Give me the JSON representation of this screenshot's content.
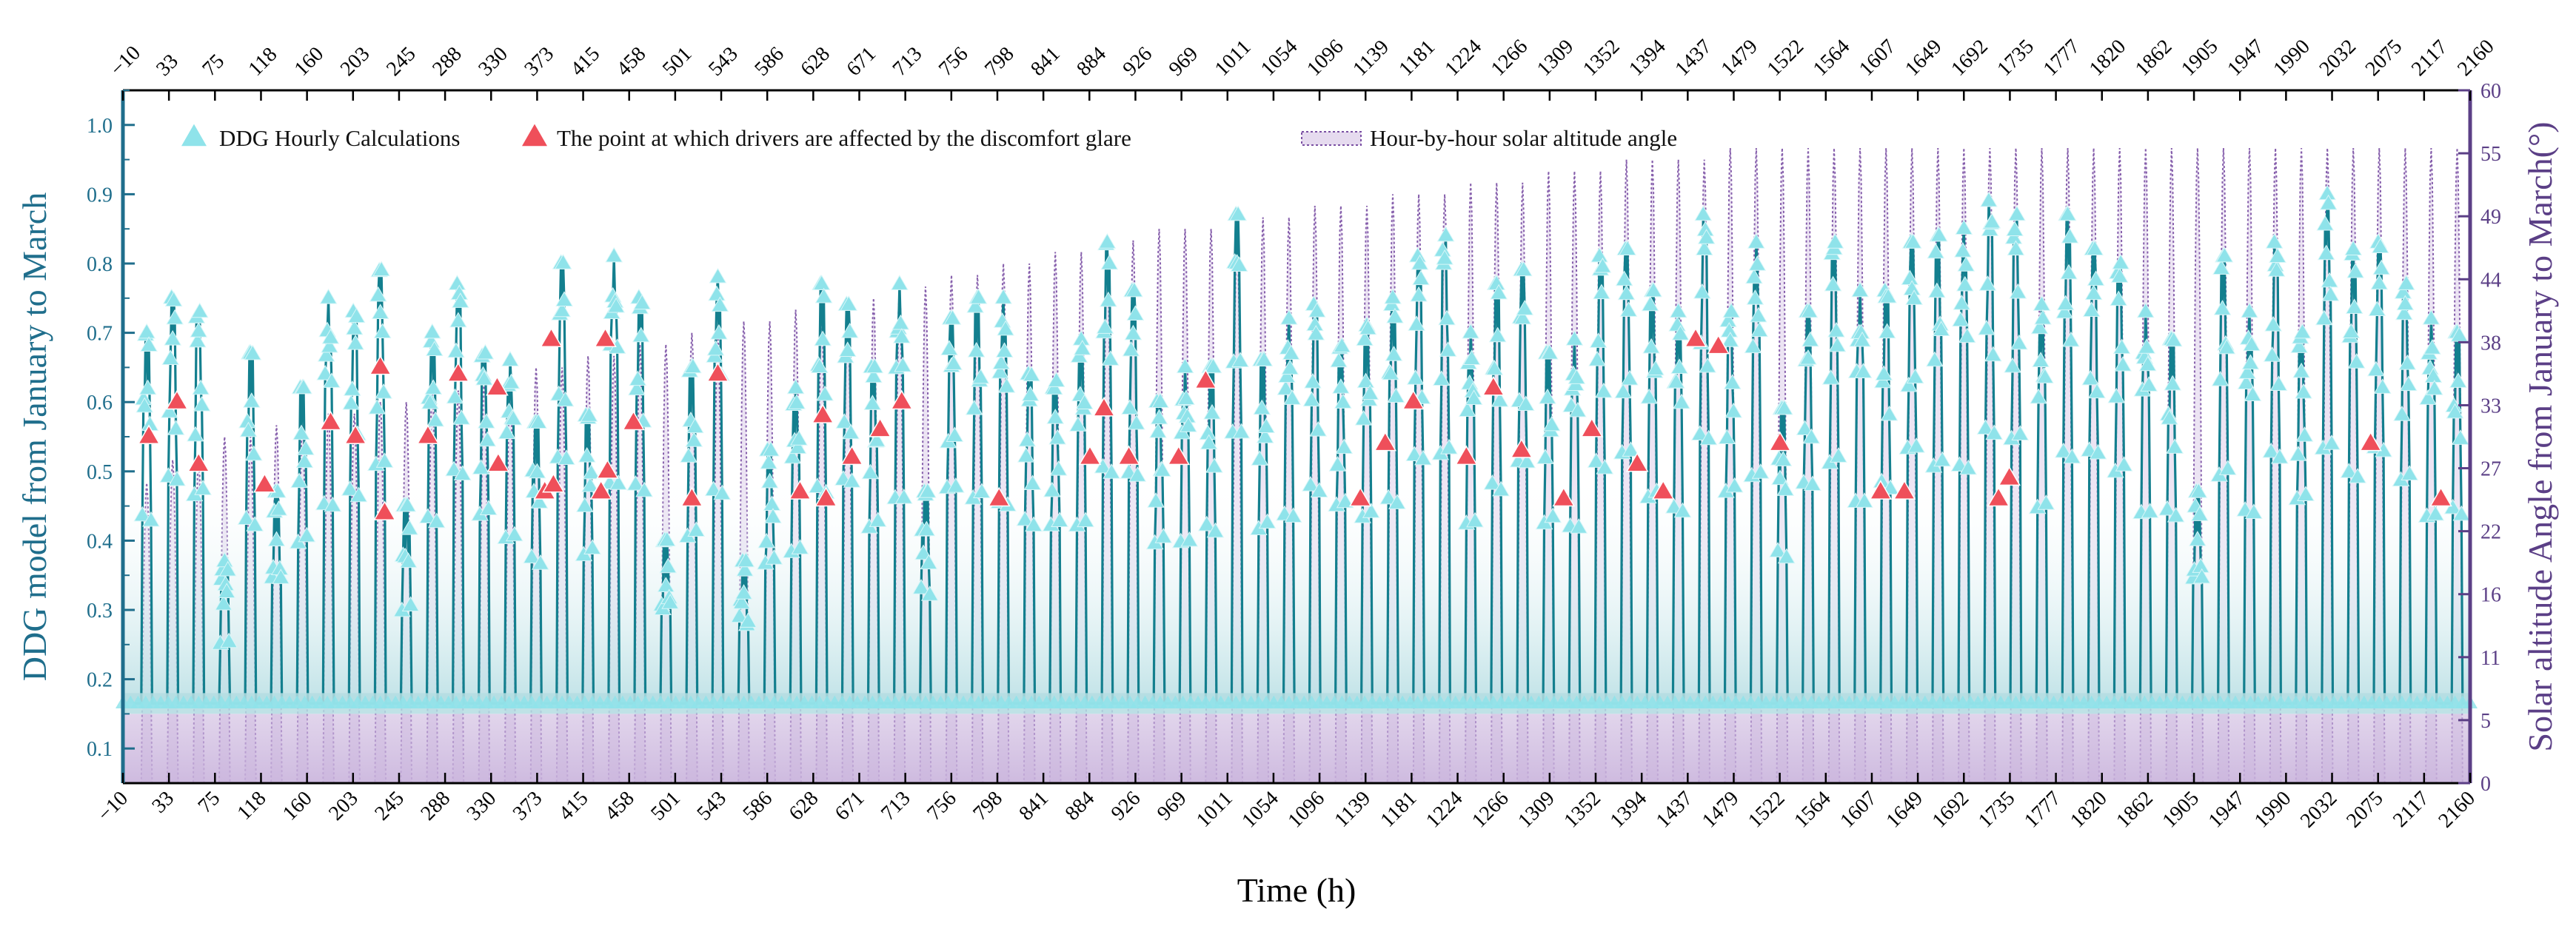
{
  "chart_data": {
    "type": "line",
    "title": "",
    "xlabel": "Time (h)",
    "ylabel": "DDG model from January to March",
    "y2label": "Solar altitude Angle from January to March(°)",
    "xlim": [
      -10,
      2160
    ],
    "ylim": [
      0.05,
      1.05
    ],
    "y2lim": [
      0,
      60
    ],
    "x_ticks": [
      "−10",
      "33",
      "75",
      "118",
      "160",
      "203",
      "245",
      "288",
      "330",
      "373",
      "415",
      "458",
      "501",
      "543",
      "586",
      "628",
      "671",
      "713",
      "756",
      "798",
      "841",
      "884",
      "926",
      "969",
      "1011",
      "1054",
      "1096",
      "1139",
      "1181",
      "1224",
      "1266",
      "1309",
      "1352",
      "1394",
      "1437",
      "1479",
      "1522",
      "1564",
      "1607",
      "1649",
      "1692",
      "1735",
      "1777",
      "1820",
      "1862",
      "1905",
      "1947",
      "1990",
      "2032",
      "2075",
      "2117",
      "2160"
    ],
    "y_ticks": [
      "0.1",
      "0.2",
      "0.3",
      "0.4",
      "0.5",
      "0.6",
      "0.7",
      "0.8",
      "0.9",
      "1.0"
    ],
    "y2_ticks": [
      "0",
      "5",
      "11",
      "16",
      "22",
      "27",
      "33",
      "38",
      "44",
      "49",
      "55",
      "60"
    ],
    "legend": [
      "DDG Hourly Calculations",
      "The point at which drivers are affected by the discomfort glare",
      "Hour-by-hour solar altitude angle"
    ],
    "legend_position": "top-left",
    "grid": false,
    "colors": {
      "ddg_line": "#137f8e",
      "ddg_marker": "#8fe3ea",
      "glare_marker": "#ef4f5a",
      "solar": "#7a4fa3",
      "solar_fill": "#c9b3dc",
      "left_axis": "#1f6e8c",
      "right_axis": "#5b3f86"
    },
    "series": [
      {
        "name": "DDG Hourly Calculations",
        "baseline": 0.165,
        "start_hour": 7,
        "end_hour": 17,
        "daily_peaks": [
          0.7,
          0.75,
          0.73,
          0.37,
          0.67,
          0.47,
          0.62,
          0.75,
          0.73,
          0.79,
          0.45,
          0.7,
          0.77,
          0.67,
          0.66,
          0.57,
          0.8,
          0.58,
          0.81,
          0.75,
          0.4,
          0.65,
          0.78,
          0.37,
          0.53,
          0.62,
          0.77,
          0.74,
          0.65,
          0.77,
          0.47,
          0.72,
          0.75,
          0.75,
          0.64,
          0.63,
          0.69,
          0.83,
          0.76,
          0.6,
          0.65,
          0.65,
          0.87,
          0.66,
          0.72,
          0.74,
          0.68,
          0.71,
          0.75,
          0.81,
          0.84,
          0.7,
          0.77,
          0.79,
          0.67,
          0.69,
          0.81,
          0.82,
          0.76,
          0.73,
          0.87,
          0.73,
          0.83,
          0.59,
          0.73,
          0.83,
          0.76,
          0.76,
          0.83,
          0.84,
          0.85,
          0.89,
          0.87,
          0.74,
          0.87,
          0.82,
          0.8,
          0.73,
          0.69,
          0.47,
          0.81,
          0.73,
          0.83,
          0.7,
          0.9,
          0.82,
          0.83,
          0.77,
          0.72,
          0.7
        ]
      },
      {
        "name": "The point at which drivers are affected by the discomfort glare",
        "points": [
          {
            "x": 14,
            "y": 0.55
          },
          {
            "x": 40,
            "y": 0.6
          },
          {
            "x": 60,
            "y": 0.51
          },
          {
            "x": 121,
            "y": 0.48
          },
          {
            "x": 182,
            "y": 0.57
          },
          {
            "x": 205,
            "y": 0.55
          },
          {
            "x": 228,
            "y": 0.65
          },
          {
            "x": 232,
            "y": 0.44
          },
          {
            "x": 272,
            "y": 0.55
          },
          {
            "x": 300,
            "y": 0.64
          },
          {
            "x": 336,
            "y": 0.62
          },
          {
            "x": 337,
            "y": 0.51
          },
          {
            "x": 380,
            "y": 0.47
          },
          {
            "x": 386,
            "y": 0.69
          },
          {
            "x": 388,
            "y": 0.48
          },
          {
            "x": 432,
            "y": 0.47
          },
          {
            "x": 436,
            "y": 0.69
          },
          {
            "x": 438,
            "y": 0.5
          },
          {
            "x": 462,
            "y": 0.57
          },
          {
            "x": 516,
            "y": 0.46
          },
          {
            "x": 540,
            "y": 0.64
          },
          {
            "x": 616,
            "y": 0.47
          },
          {
            "x": 637,
            "y": 0.58
          },
          {
            "x": 640,
            "y": 0.46
          },
          {
            "x": 664,
            "y": 0.52
          },
          {
            "x": 690,
            "y": 0.56
          },
          {
            "x": 710,
            "y": 0.6
          },
          {
            "x": 800,
            "y": 0.46
          },
          {
            "x": 884,
            "y": 0.52
          },
          {
            "x": 897,
            "y": 0.59
          },
          {
            "x": 920,
            "y": 0.52
          },
          {
            "x": 966,
            "y": 0.52
          },
          {
            "x": 991,
            "y": 0.63
          },
          {
            "x": 1134,
            "y": 0.46
          },
          {
            "x": 1157,
            "y": 0.54
          },
          {
            "x": 1183,
            "y": 0.6
          },
          {
            "x": 1232,
            "y": 0.52
          },
          {
            "x": 1257,
            "y": 0.62
          },
          {
            "x": 1283,
            "y": 0.53
          },
          {
            "x": 1322,
            "y": 0.46
          },
          {
            "x": 1348,
            "y": 0.56
          },
          {
            "x": 1390,
            "y": 0.51
          },
          {
            "x": 1414,
            "y": 0.47
          },
          {
            "x": 1444,
            "y": 0.69
          },
          {
            "x": 1465,
            "y": 0.68
          },
          {
            "x": 1522,
            "y": 0.54
          },
          {
            "x": 1615,
            "y": 0.47
          },
          {
            "x": 1637,
            "y": 0.47
          },
          {
            "x": 1724,
            "y": 0.46
          },
          {
            "x": 1734,
            "y": 0.49
          },
          {
            "x": 2068,
            "y": 0.54
          },
          {
            "x": 2133,
            "y": 0.46
          }
        ]
      },
      {
        "name": "Hour-by-hour solar altitude angle",
        "axis": "right",
        "noon_hour": 12,
        "day_length_hours": 10,
        "daily_peaks": [
          26,
          28,
          28,
          30,
          30,
          31,
          31,
          32,
          32,
          33,
          33,
          34,
          34,
          35,
          35,
          36,
          36,
          37,
          37,
          38,
          38,
          39,
          39,
          40,
          40,
          41,
          41,
          42,
          42,
          43,
          43,
          44,
          44,
          45,
          45,
          46,
          46,
          47,
          47,
          48,
          48,
          48,
          49,
          49,
          49,
          50,
          50,
          50,
          51,
          51,
          51,
          52,
          52,
          52,
          53,
          53,
          53,
          54,
          54,
          54,
          54,
          55,
          55,
          55,
          55,
          55,
          55,
          55,
          55,
          55,
          55,
          55,
          55,
          55,
          55,
          55,
          55,
          55,
          55,
          55,
          55,
          55,
          55,
          55,
          55,
          55,
          55,
          55,
          55,
          55
        ]
      }
    ]
  }
}
